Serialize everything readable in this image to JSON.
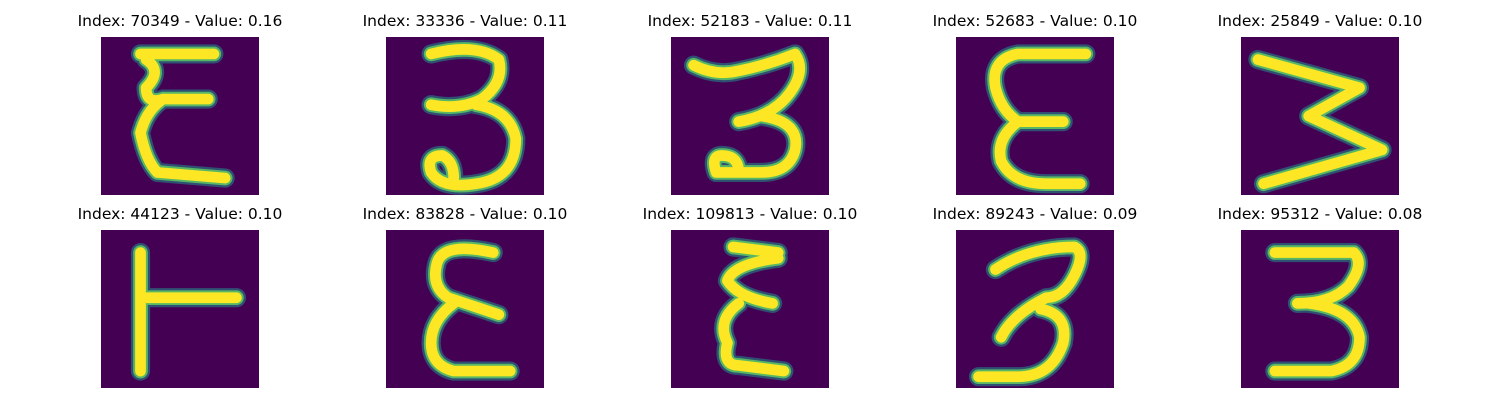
{
  "colors": {
    "background": "#440154",
    "stroke_mid": "#21918c",
    "stroke_edge": "#5ec962",
    "stroke_core": "#fde725"
  },
  "panels": [
    {
      "index": "70349",
      "value": "0.16",
      "title": "Index: 70349 - Value: 0.16"
    },
    {
      "index": "33336",
      "value": "0.11",
      "title": "Index: 33336 - Value: 0.11"
    },
    {
      "index": "52183",
      "value": "0.11",
      "title": "Index: 52183 - Value: 0.11"
    },
    {
      "index": "52683",
      "value": "0.10",
      "title": "Index: 52683 - Value: 0.10"
    },
    {
      "index": "25849",
      "value": "0.10",
      "title": "Index: 25849 - Value: 0.10"
    },
    {
      "index": "44123",
      "value": "0.10",
      "title": "Index: 44123 - Value: 0.10"
    },
    {
      "index": "83828",
      "value": "0.10",
      "title": "Index: 83828 - Value: 0.10"
    },
    {
      "index": "109813",
      "value": "0.10",
      "title": "Index: 109813 - Value: 0.10"
    },
    {
      "index": "89243",
      "value": "0.09",
      "title": "Index: 89243 - Value: 0.09"
    },
    {
      "index": "95312",
      "value": "0.08",
      "title": "Index: 95312 - Value: 0.08"
    }
  ]
}
